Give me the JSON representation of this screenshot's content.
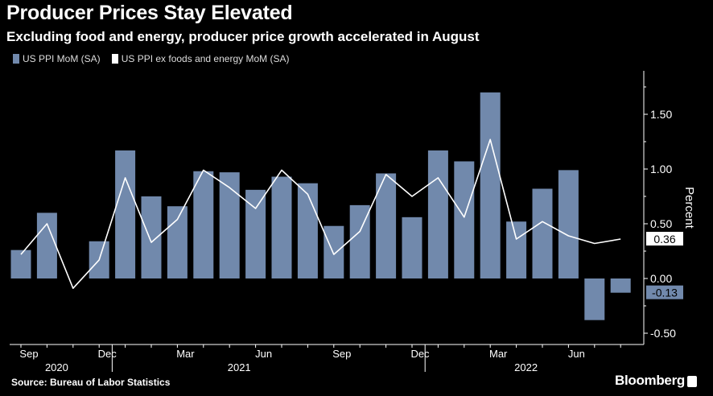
{
  "header": {
    "title": "Producer Prices Stay Elevated",
    "subtitle": "Excluding food and energy, producer price growth accelerated in August"
  },
  "footer": {
    "source": "Source: Bureau of Labor Statistics",
    "brand": "Bloomberg"
  },
  "colors": {
    "bar": "#7189ac",
    "line": "#ffffff",
    "background": "#000000",
    "axis": "#ffffff"
  },
  "chart_data": {
    "type": "bar",
    "title": "Producer Prices Stay Elevated",
    "subtitle": "Excluding food and energy, producer price growth accelerated in August",
    "ylabel": "Percent",
    "ylim": [
      -0.55,
      1.9
    ],
    "y_ticks": [
      "1.50",
      "1.00",
      "0.50",
      "0.00",
      "-0.50"
    ],
    "y_tick_values": [
      1.5,
      1.0,
      0.5,
      0.0,
      -0.5
    ],
    "y_axis_side": "right",
    "grid": false,
    "legend_position": "top-left",
    "x_ticks": [
      "Sep",
      "Dec",
      "Mar",
      "Jun",
      "Sep",
      "Dec",
      "Mar",
      "Jun"
    ],
    "x_tick_months": [
      "2020-09",
      "2020-12",
      "2021-03",
      "2021-06",
      "2021-09",
      "2021-12",
      "2022-03",
      "2022-06"
    ],
    "year_labels": [
      "2020",
      "2021",
      "2022"
    ],
    "year_label_months": [
      "2020-10",
      "2021-05",
      "2022-04"
    ],
    "categories": [
      "2020-09",
      "2020-10",
      "2020-11",
      "2020-12",
      "2021-01",
      "2021-02",
      "2021-03",
      "2021-04",
      "2021-05",
      "2021-06",
      "2021-07",
      "2021-08",
      "2021-09",
      "2021-10",
      "2021-11",
      "2021-12",
      "2022-01",
      "2022-02",
      "2022-03",
      "2022-04",
      "2022-05",
      "2022-06",
      "2022-07",
      "2022-08"
    ],
    "series": [
      {
        "name": "US PPI MoM (SA)",
        "kind": "bar",
        "values": [
          0.26,
          0.6,
          null,
          0.34,
          1.17,
          0.75,
          0.66,
          0.98,
          0.97,
          0.81,
          0.93,
          0.87,
          0.48,
          0.67,
          0.96,
          0.56,
          1.17,
          1.07,
          1.7,
          0.52,
          0.82,
          0.99,
          -0.38,
          -0.13
        ]
      },
      {
        "name": "US PPI ex foods and energy MoM (SA)",
        "kind": "line",
        "values": [
          0.22,
          0.5,
          -0.09,
          0.17,
          0.92,
          0.33,
          0.54,
          0.99,
          0.83,
          0.64,
          0.99,
          0.77,
          0.22,
          0.43,
          0.95,
          0.75,
          0.92,
          0.56,
          1.27,
          0.36,
          0.52,
          0.39,
          0.32,
          0.36
        ]
      }
    ],
    "end_labels": [
      "0.36",
      "-0.13"
    ]
  }
}
